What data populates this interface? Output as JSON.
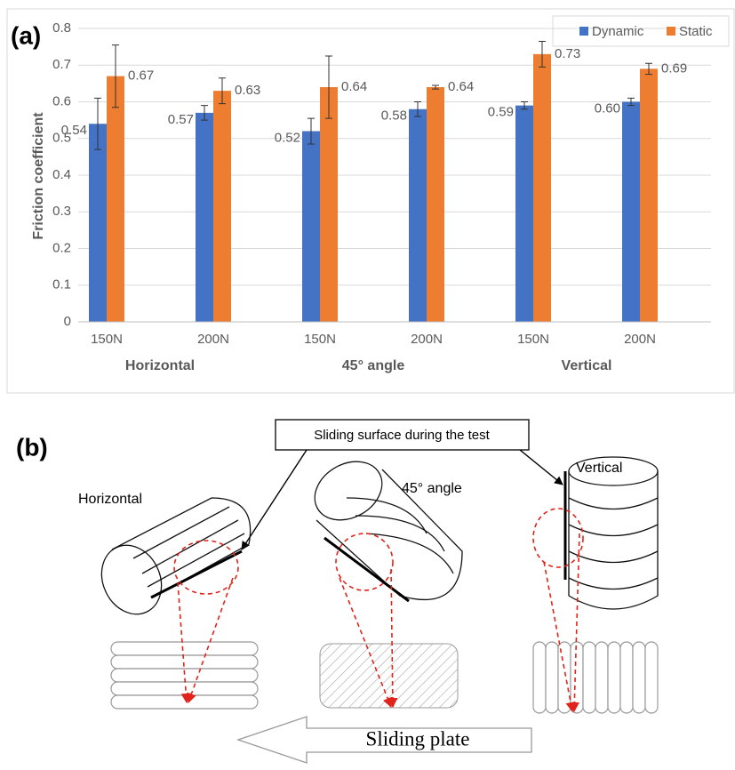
{
  "chart_data": {
    "type": "bar",
    "panel_label": "(a)",
    "ylabel": "Friction coefficient",
    "categories": [
      "150N",
      "200N",
      "150N",
      "200N",
      "150N",
      "200N"
    ],
    "groups": [
      "Horizontal",
      "45° angle",
      "Vertical"
    ],
    "series": [
      {
        "name": "Dynamic",
        "color": "#4472c4",
        "values": [
          0.54,
          0.57,
          0.52,
          0.58,
          0.59,
          0.6
        ],
        "value_labels": [
          "0.54",
          "0.57",
          "0.52",
          "0.58",
          "0.59",
          "0.60"
        ],
        "errors": [
          0.07,
          0.02,
          0.035,
          0.02,
          0.01,
          0.01
        ]
      },
      {
        "name": "Static",
        "color": "#ed7d31",
        "values": [
          0.67,
          0.63,
          0.64,
          0.64,
          0.73,
          0.69
        ],
        "value_labels": [
          "0.67",
          "0.63",
          "0.64",
          "0.64",
          "0.73",
          "0.69"
        ],
        "errors": [
          0.085,
          0.035,
          0.085,
          0.005,
          0.035,
          0.015
        ]
      }
    ],
    "ylim": [
      0,
      0.8
    ],
    "yticks": [
      0,
      0.1,
      0.2,
      0.3,
      0.4,
      0.5,
      0.6,
      0.7,
      0.8
    ],
    "grid": true,
    "legend": "top-right"
  },
  "diagram": {
    "panel_label": "(b)",
    "callout": "Sliding surface during the test",
    "labels": [
      "Horizontal",
      "45° angle",
      "Vertical"
    ],
    "plate_label": "Sliding plate"
  }
}
